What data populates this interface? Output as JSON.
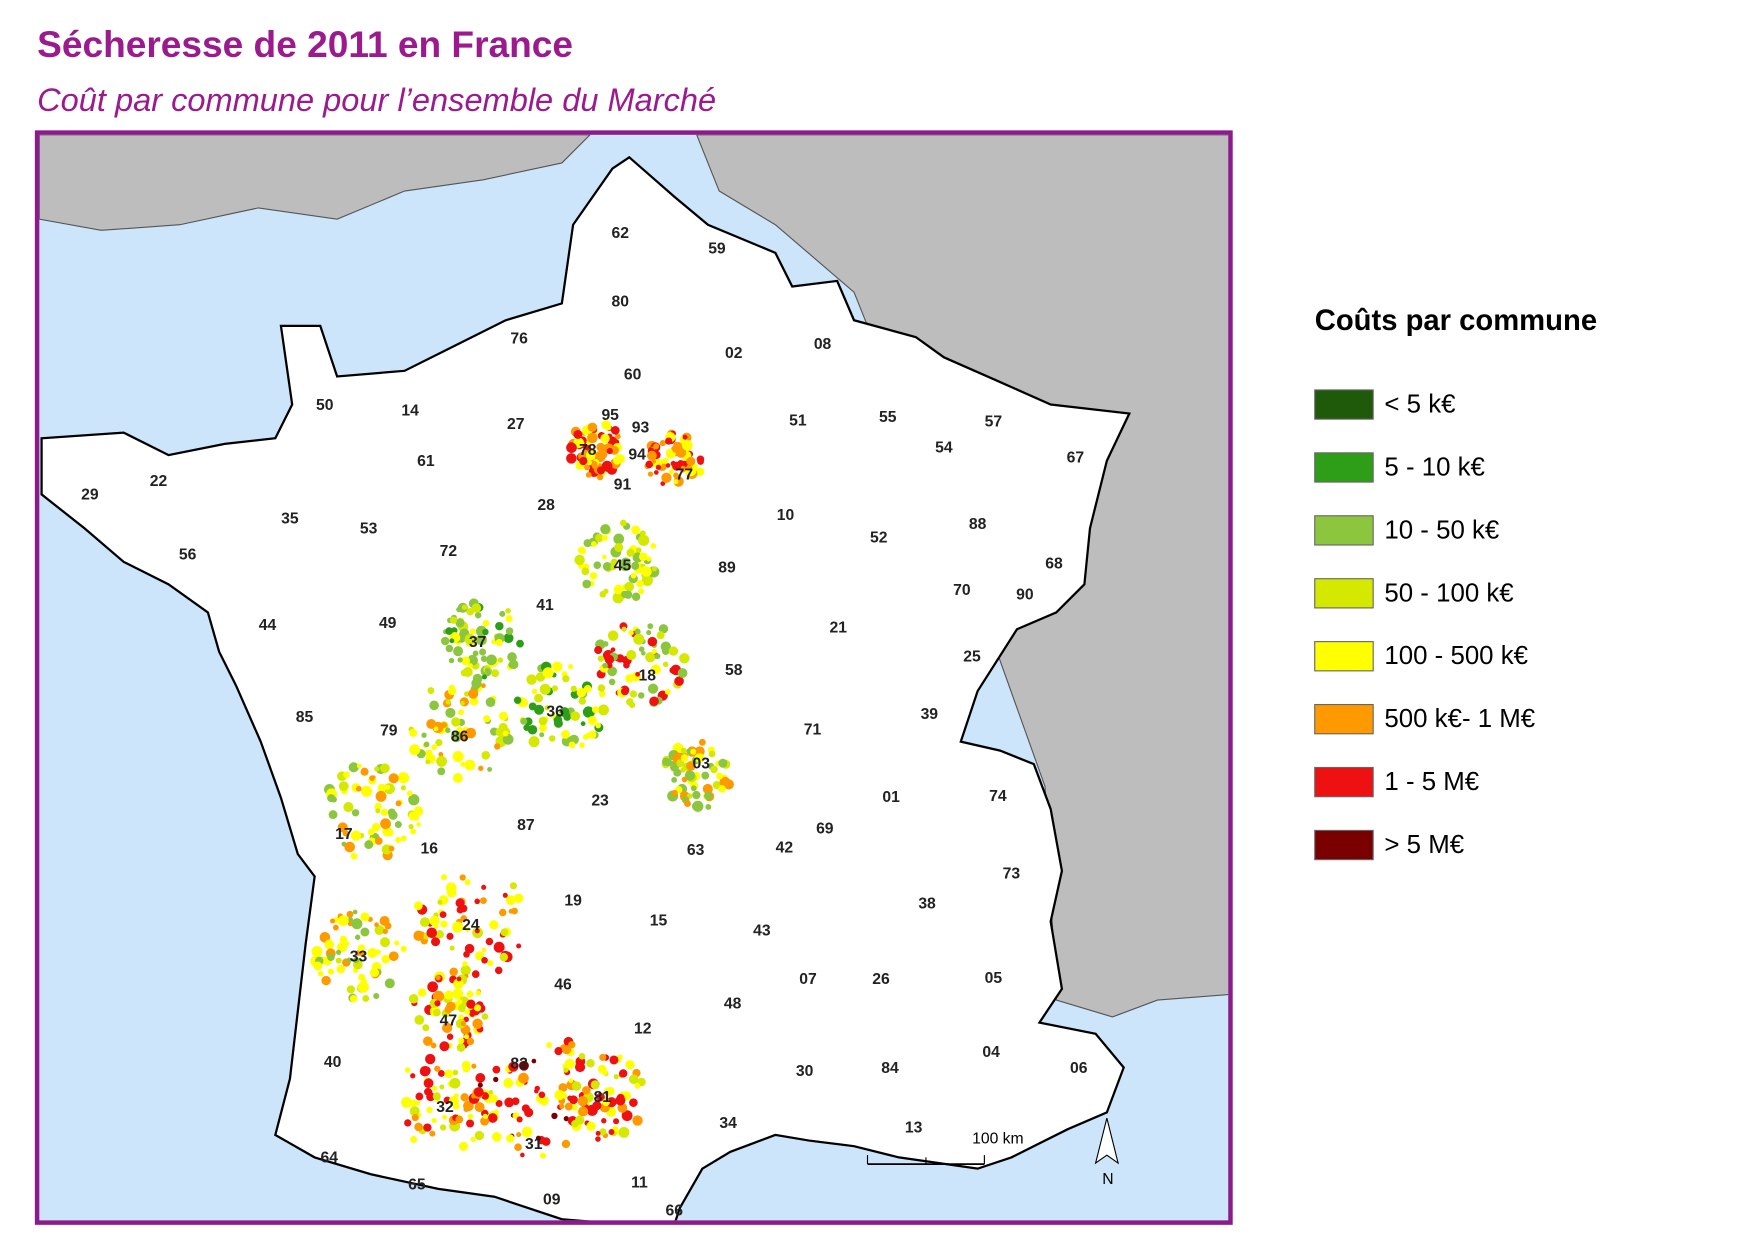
{
  "header": {
    "title": "Sécheresse de 2011 en France",
    "subtitle": "Coût par commune pour l’ensemble du Marché"
  },
  "legend": {
    "title": "Coûts par commune",
    "items": [
      {
        "label": "< 5 k€",
        "color": "#1e5a0a"
      },
      {
        "label": "5 - 10 k€",
        "color": "#2e9e18"
      },
      {
        "label": "10 - 50 k€",
        "color": "#8cc63f"
      },
      {
        "label": "50 - 100 k€",
        "color": "#d4e800"
      },
      {
        "label": "100 - 500 k€",
        "color": "#ffff00"
      },
      {
        "label": "500 k€- 1 M€",
        "color": "#ff9900"
      },
      {
        "label": "1 - 5 M€",
        "color": "#ee1111"
      },
      {
        "label": "> 5 M€",
        "color": "#7a0000"
      }
    ]
  },
  "map": {
    "departments": [
      "62",
      "59",
      "80",
      "76",
      "60",
      "02",
      "08",
      "50",
      "14",
      "27",
      "95",
      "93",
      "78",
      "94",
      "91",
      "77",
      "51",
      "55",
      "57",
      "54",
      "67",
      "29",
      "22",
      "61",
      "35",
      "53",
      "28",
      "10",
      "52",
      "88",
      "56",
      "72",
      "45",
      "89",
      "68",
      "70",
      "90",
      "44",
      "49",
      "41",
      "37",
      "21",
      "25",
      "18",
      "58",
      "85",
      "79",
      "86",
      "36",
      "39",
      "71",
      "03",
      "17",
      "16",
      "87",
      "23",
      "01",
      "74",
      "63",
      "42",
      "69",
      "73",
      "24",
      "19",
      "15",
      "43",
      "38",
      "33",
      "46",
      "07",
      "26",
      "05",
      "47",
      "12",
      "48",
      "40",
      "82",
      "81",
      "30",
      "84",
      "04",
      "06",
      "32",
      "31",
      "34",
      "13",
      "64",
      "65",
      "09",
      "11",
      "66"
    ],
    "scale_bar": "100 km",
    "north": "N"
  }
}
